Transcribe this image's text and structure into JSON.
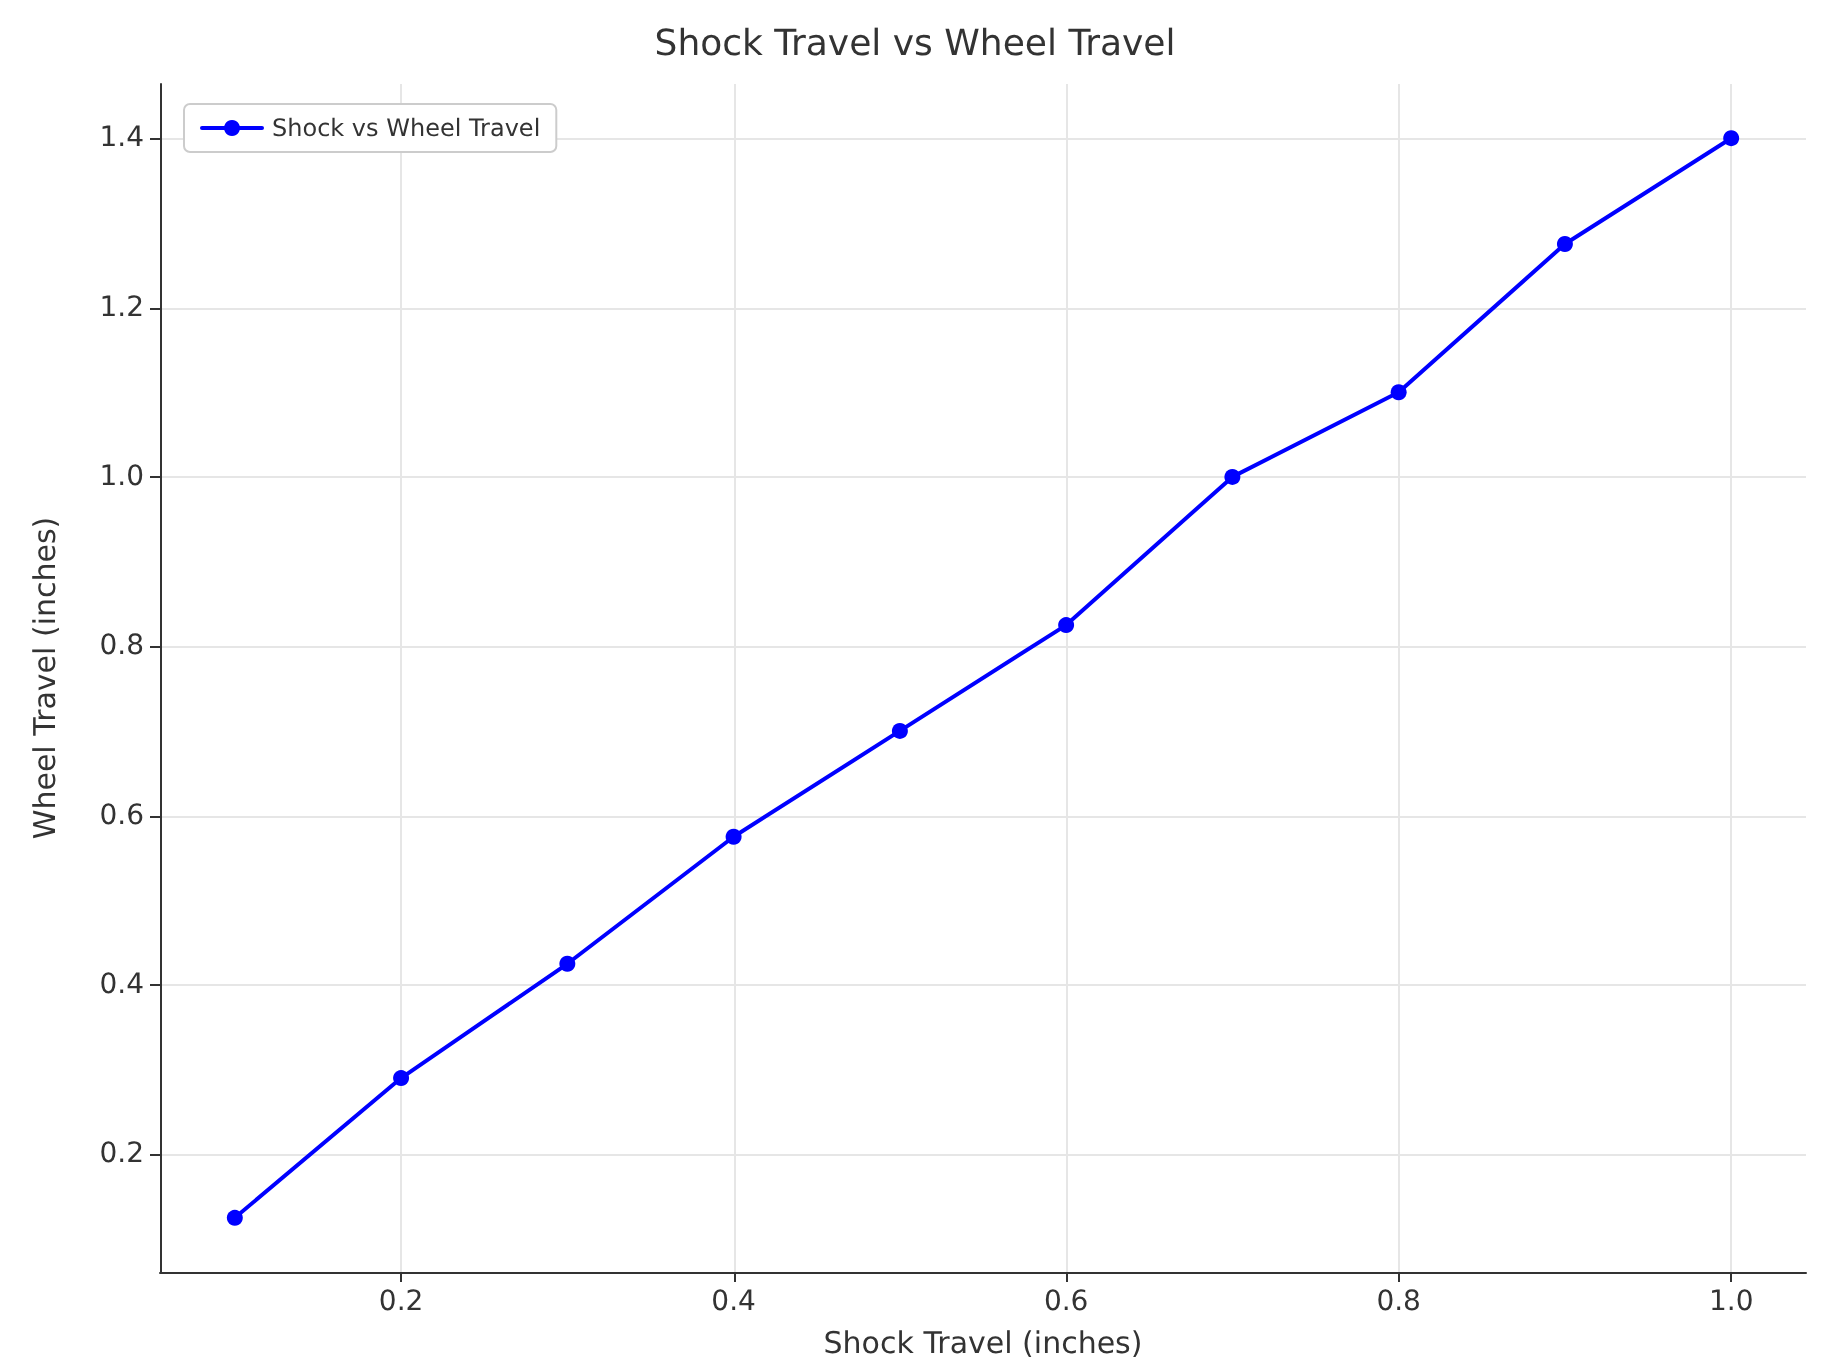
{
  "chart_data": {
    "type": "line",
    "title": "Shock Travel vs Wheel Travel",
    "xlabel": "Shock Travel (inches)",
    "ylabel": "Wheel Travel (inches)",
    "x": [
      0.1,
      0.2,
      0.3,
      0.4,
      0.5,
      0.6,
      0.7,
      0.8,
      0.9,
      1.0
    ],
    "series": [
      {
        "name": "Shock vs Wheel Travel",
        "color": "#0000ff",
        "values": [
          0.125,
          0.29,
          0.425,
          0.575,
          0.7,
          0.825,
          1.0,
          1.1,
          1.275,
          1.4
        ]
      }
    ],
    "xlim": [
      0.055,
      1.045
    ],
    "ylim": [
      0.061,
      1.464
    ],
    "xticks": [
      {
        "value": 0.2,
        "label": "0.2"
      },
      {
        "value": 0.4,
        "label": "0.4"
      },
      {
        "value": 0.6,
        "label": "0.6"
      },
      {
        "value": 0.8,
        "label": "0.8"
      },
      {
        "value": 1.0,
        "label": "1.0"
      }
    ],
    "yticks": [
      {
        "value": 0.2,
        "label": "0.2"
      },
      {
        "value": 0.4,
        "label": "0.4"
      },
      {
        "value": 0.6,
        "label": "0.6"
      },
      {
        "value": 0.8,
        "label": "0.8"
      },
      {
        "value": 1.0,
        "label": "1.0"
      },
      {
        "value": 1.2,
        "label": "1.2"
      },
      {
        "value": 1.4,
        "label": "1.4"
      }
    ],
    "grid": true,
    "legend": "top left",
    "marker": "circle",
    "line_style": "solid"
  }
}
